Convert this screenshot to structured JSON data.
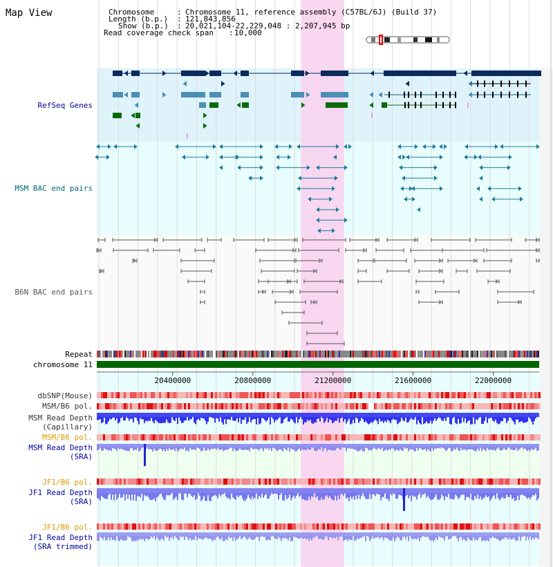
{
  "title": "Map View",
  "info": [
    {
      "key": "Chromosome",
      "value": "Chromosome 11, reference assembly (C57BL/6J) (Build 37)"
    },
    {
      "key": "Length (b.p.)",
      "value": "121,843,856"
    },
    {
      "key": "Show (b.p.)",
      "value": "20,021,104-22,229,048 : 2,207,945 bp"
    },
    {
      "key": "Read coverage check span",
      "value": "10,000"
    }
  ],
  "tracks": {
    "refseq": "RefSeq Genes",
    "msm_bac": "MSM BAC end pairs",
    "b6n_bac": "B6N BAC end pairs",
    "repeat": "Repeat",
    "chromosome": "chromosome 11",
    "dbsnp": "dbSNP(Mouse)",
    "msm_b6_pol": "MSM/B6 pol.",
    "msm_depth_cap_1": "MSM Read Depth",
    "msm_depth_cap_2": "(Capillary)",
    "msm_b6_pol_sra": "MSM/B6 pol.",
    "msm_depth_sra_1": "MSM Read Depth",
    "msm_depth_sra_2": "(SRA)",
    "jf1_b6_pol": "JF1/B6 pol.",
    "jf1_depth_1": "JF1 Read Depth",
    "jf1_depth_2": "(SRA)",
    "jf1_b6_pol_t": "JF1/B6 pol.",
    "jf1_depth_t1": "JF1 Read Depth",
    "jf1_depth_t2": "(SRA trimmed)"
  },
  "axis": {
    "start": 20021104,
    "end": 22229048,
    "ticks": [
      "20400000",
      "20800000",
      "21200000",
      "21600000",
      "22000000"
    ],
    "tick_values": [
      20400000,
      20800000,
      21200000,
      21600000,
      22000000
    ]
  },
  "highlight": {
    "start": 21040000,
    "end": 21255000
  },
  "colors": {
    "refseq_bg": "#dff3fb",
    "msm_bg": "#e8fdfd",
    "highlight": "#f9d3f0",
    "gene_dark": "#0c2a5b",
    "gene_teal": "#4b8fb5",
    "gene_green": "#0c6a0c",
    "msm_pair": "#1f7a9a",
    "b6n_pair": "#555555",
    "chrom": "#006600",
    "depth_blue": "#2222ee",
    "depth_light": "#7777ee",
    "title_blue": "#000099",
    "msm_teal_label": "#006677",
    "orange_label": "#dd9900"
  }
}
